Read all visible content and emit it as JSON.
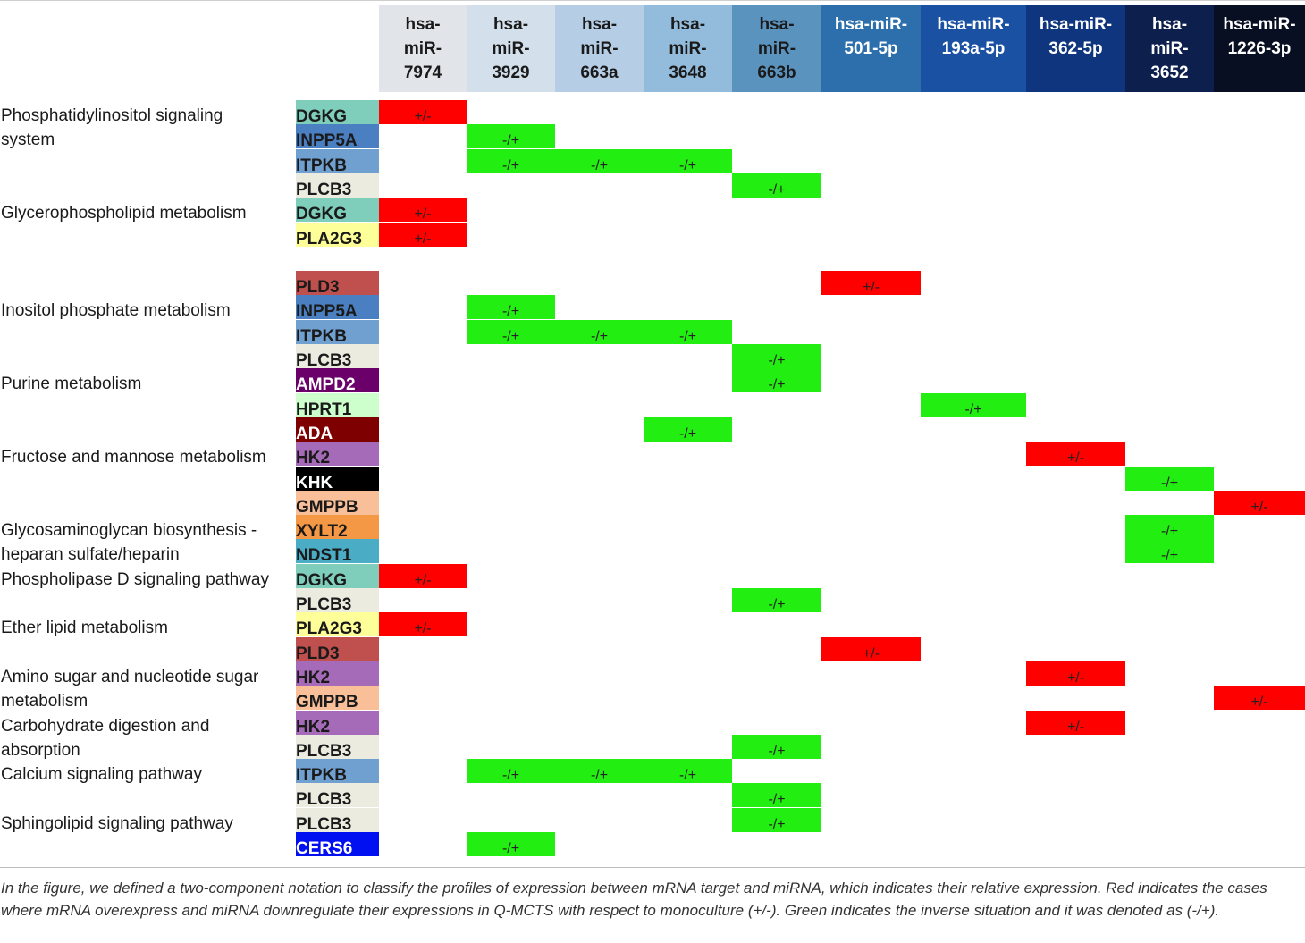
{
  "mirnas": [
    {
      "label": "hsa-\nmiR-\n7974",
      "bg": "#e1e5ea",
      "fg": "#1a1a1a"
    },
    {
      "label": "hsa-\nmiR-\n3929",
      "bg": "#d3e0ec",
      "fg": "#1a1a1a"
    },
    {
      "label": "hsa-\nmiR-\n663a",
      "bg": "#b6cde6",
      "fg": "#1a1a1a"
    },
    {
      "label": "hsa-\nmiR-\n3648",
      "bg": "#93bcdc",
      "fg": "#1a1a1a"
    },
    {
      "label": "hsa-\nmiR-\n663b",
      "bg": "#5b93bf",
      "fg": "#1a1a1a"
    },
    {
      "label": "hsa-miR-\n501-5p",
      "bg": "#2d6fad",
      "fg": "#ffffff"
    },
    {
      "label": "hsa-miR-\n193a-5p",
      "bg": "#1a51a3",
      "fg": "#ffffff"
    },
    {
      "label": "hsa-miR-\n362-5p",
      "bg": "#0f357e",
      "fg": "#ffffff"
    },
    {
      "label": "hsa-\nmiR-\n3652",
      "bg": "#0c1f4d",
      "fg": "#ffffff"
    },
    {
      "label": "hsa-miR-\n1226-3p",
      "bg": "#080f22",
      "fg": "#ffffff"
    }
  ],
  "pathways": [
    {
      "label": "Phosphatidylinositol signaling\nsystem",
      "row": 0
    },
    {
      "label": "Glycerophospholipid metabolism",
      "row": 4
    },
    {
      "label": "Inositol phosphate metabolism",
      "row": 8
    },
    {
      "label": "Purine metabolism",
      "row": 11
    },
    {
      "label": "Fructose and mannose metabolism",
      "row": 14
    },
    {
      "label": "Glycosaminoglycan biosynthesis -\nheparan sulfate/heparin",
      "row": 17
    },
    {
      "label": "Phospholipase D signaling pathway",
      "row": 19
    },
    {
      "label": "Ether lipid metabolism",
      "row": 21
    },
    {
      "label": "Amino sugar and nucleotide sugar\nmetabolism",
      "row": 23
    },
    {
      "label": "Carbohydrate digestion and\nabsorption",
      "row": 25
    },
    {
      "label": "Calcium signaling pathway",
      "row": 27
    },
    {
      "label": "Sphingolipid signaling pathway",
      "row": 29
    }
  ],
  "rows": [
    {
      "gene": "DGKG",
      "bg": "#7fcdbb",
      "fg": "#1a1a1a",
      "cells": [
        {
          "col": 0,
          "value": "+/-",
          "color": "red"
        }
      ]
    },
    {
      "gene": "INPP5A",
      "bg": "#4a7fc1",
      "fg": "#1a1a1a",
      "cells": [
        {
          "col": 1,
          "value": "-/+",
          "color": "green"
        }
      ]
    },
    {
      "gene": "ITPKB",
      "bg": "#6fa0d0",
      "fg": "#1a1a1a",
      "cells": [
        {
          "col": 1,
          "value": "-/+",
          "color": "green"
        },
        {
          "col": 2,
          "value": "-/+",
          "color": "green"
        },
        {
          "col": 3,
          "value": "-/+",
          "color": "green"
        }
      ]
    },
    {
      "gene": "PLCB3",
      "bg": "#ebebe0",
      "fg": "#1a1a1a",
      "cells": [
        {
          "col": 4,
          "value": "-/+",
          "color": "green"
        }
      ]
    },
    {
      "gene": "DGKG",
      "bg": "#7fcdbb",
      "fg": "#1a1a1a",
      "cells": [
        {
          "col": 0,
          "value": "+/-",
          "color": "red"
        }
      ]
    },
    {
      "gene": "PLA2G3",
      "bg": "#ffff99",
      "fg": "#1a1a1a",
      "cells": [
        {
          "col": 0,
          "value": "+/-",
          "color": "red"
        }
      ]
    },
    {
      "gene": "",
      "bg": "#ffffff",
      "fg": "#1a1a1a",
      "cells": []
    },
    {
      "gene": "PLD3",
      "bg": "#c0504d",
      "fg": "#1a1a1a",
      "cells": [
        {
          "col": 5,
          "value": "+/-",
          "color": "red"
        }
      ]
    },
    {
      "gene": "INPP5A",
      "bg": "#4a7fc1",
      "fg": "#1a1a1a",
      "cells": [
        {
          "col": 1,
          "value": "-/+",
          "color": "green"
        }
      ]
    },
    {
      "gene": "ITPKB",
      "bg": "#6fa0d0",
      "fg": "#1a1a1a",
      "cells": [
        {
          "col": 1,
          "value": "-/+",
          "color": "green"
        },
        {
          "col": 2,
          "value": "-/+",
          "color": "green"
        },
        {
          "col": 3,
          "value": "-/+",
          "color": "green"
        }
      ]
    },
    {
      "gene": "PLCB3",
      "bg": "#ebebe0",
      "fg": "#1a1a1a",
      "cells": [
        {
          "col": 4,
          "value": "-/+",
          "color": "green"
        }
      ]
    },
    {
      "gene": "AMPD2",
      "bg": "#6b006b",
      "fg": "#ffffff",
      "cells": [
        {
          "col": 4,
          "value": "-/+",
          "color": "green"
        }
      ]
    },
    {
      "gene": "HPRT1",
      "bg": "#ccffcc",
      "fg": "#1a1a1a",
      "cells": [
        {
          "col": 6,
          "value": "-/+",
          "color": "green"
        }
      ]
    },
    {
      "gene": "ADA",
      "bg": "#7f0000",
      "fg": "#ffffff",
      "cells": [
        {
          "col": 3,
          "value": "-/+",
          "color": "green"
        }
      ]
    },
    {
      "gene": "HK2",
      "bg": "#a66bb8",
      "fg": "#1a1a1a",
      "cells": [
        {
          "col": 7,
          "value": "+/-",
          "color": "red"
        }
      ]
    },
    {
      "gene": "KHK",
      "bg": "#000000",
      "fg": "#ffffff",
      "cells": [
        {
          "col": 8,
          "value": "-/+",
          "color": "green"
        }
      ]
    },
    {
      "gene": "GMPPB",
      "bg": "#f8bf98",
      "fg": "#1a1a1a",
      "cells": [
        {
          "col": 9,
          "value": "+/-",
          "color": "red"
        }
      ]
    },
    {
      "gene": "XYLT2",
      "bg": "#f49845",
      "fg": "#1a1a1a",
      "cells": [
        {
          "col": 8,
          "value": "-/+",
          "color": "green"
        }
      ]
    },
    {
      "gene": "NDST1",
      "bg": "#4bacc6",
      "fg": "#1a1a1a",
      "cells": [
        {
          "col": 8,
          "value": "-/+",
          "color": "green"
        }
      ]
    },
    {
      "gene": "DGKG",
      "bg": "#7fcdbb",
      "fg": "#1a1a1a",
      "cells": [
        {
          "col": 0,
          "value": "+/-",
          "color": "red"
        }
      ]
    },
    {
      "gene": "PLCB3",
      "bg": "#ebebe0",
      "fg": "#1a1a1a",
      "cells": [
        {
          "col": 4,
          "value": "-/+",
          "color": "green"
        }
      ]
    },
    {
      "gene": "PLA2G3",
      "bg": "#ffff99",
      "fg": "#1a1a1a",
      "cells": [
        {
          "col": 0,
          "value": "+/-",
          "color": "red"
        }
      ]
    },
    {
      "gene": "PLD3",
      "bg": "#c0504d",
      "fg": "#1a1a1a",
      "cells": [
        {
          "col": 5,
          "value": "+/-",
          "color": "red"
        }
      ]
    },
    {
      "gene": "HK2",
      "bg": "#a66bb8",
      "fg": "#1a1a1a",
      "cells": [
        {
          "col": 7,
          "value": "+/-",
          "color": "red"
        }
      ]
    },
    {
      "gene": "GMPPB",
      "bg": "#f8bf98",
      "fg": "#1a1a1a",
      "cells": [
        {
          "col": 9,
          "value": "+/-",
          "color": "red"
        }
      ]
    },
    {
      "gene": "HK2",
      "bg": "#a66bb8",
      "fg": "#1a1a1a",
      "cells": [
        {
          "col": 7,
          "value": "+/-",
          "color": "red"
        }
      ]
    },
    {
      "gene": "PLCB3",
      "bg": "#ebebe0",
      "fg": "#1a1a1a",
      "cells": [
        {
          "col": 4,
          "value": "-/+",
          "color": "green"
        }
      ]
    },
    {
      "gene": "ITPKB",
      "bg": "#6fa0d0",
      "fg": "#1a1a1a",
      "cells": [
        {
          "col": 1,
          "value": "-/+",
          "color": "green"
        },
        {
          "col": 2,
          "value": "-/+",
          "color": "green"
        },
        {
          "col": 3,
          "value": "-/+",
          "color": "green"
        }
      ]
    },
    {
      "gene": "PLCB3",
      "bg": "#ebebe0",
      "fg": "#1a1a1a",
      "cells": [
        {
          "col": 4,
          "value": "-/+",
          "color": "green"
        }
      ]
    },
    {
      "gene": "PLCB3",
      "bg": "#ebebe0",
      "fg": "#1a1a1a",
      "cells": [
        {
          "col": 4,
          "value": "-/+",
          "color": "green"
        }
      ]
    },
    {
      "gene": "CERS6",
      "bg": "#0010f0",
      "fg": "#ffffff",
      "cells": [
        {
          "col": 1,
          "value": "-/+",
          "color": "green"
        }
      ]
    }
  ],
  "caption": "In the figure, we defined a two-component notation to classify the profiles of expression between mRNA target and miRNA, which indicates their relative expression. Red indicates the cases where mRNA overexpress and miRNA downregulate their expressions in Q-MCTS with respect to monoculture (+/-). Green indicates the inverse situation and it was denoted as (-/+)."
}
